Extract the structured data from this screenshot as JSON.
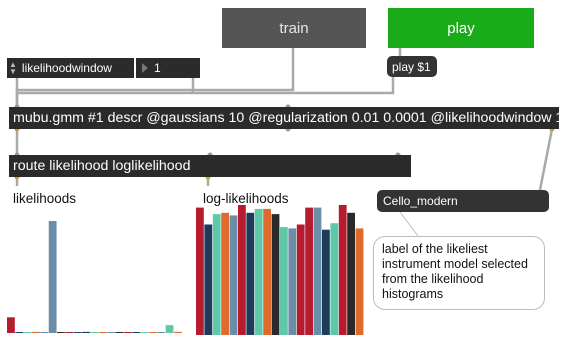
{
  "buttons": {
    "train": "train",
    "play": "play"
  },
  "menu": {
    "value": "likelihoodwindow",
    "number": "1"
  },
  "messages": {
    "play": "play $1"
  },
  "objects": {
    "mubu": "mubu.gmm #1 descr @gaussians 10 @regularization 0.01 0.0001 @likelihoodwindow 1",
    "route": "route likelihood loglikelihood"
  },
  "output_label": "Cello_modern",
  "comments": {
    "likelihoods": "likelihoods",
    "loglikelihoods": "log-likelihoods",
    "bubble": "label of the likeliest instrument model selected from the likelihood histograms"
  },
  "colors": {
    "red": "#b71c2e",
    "navy": "#1f3b5b",
    "teal": "#5ec8a8",
    "orange": "#de6a2b",
    "steel": "#6b8ea8",
    "dark": "#2a2a2a"
  },
  "histograms": {
    "likelihoods": {
      "values": [
        0.14,
        0.005,
        0.005,
        0.01,
        0.0,
        1.0,
        0.0,
        0.0,
        0.0,
        0.01,
        0.0,
        0.0,
        0.0,
        0.0,
        0.0,
        0.0,
        0.0,
        0.0,
        0.0,
        0.07,
        0.01
      ],
      "colors": [
        "red",
        "navy",
        "teal",
        "orange",
        "steel",
        "steel",
        "dark",
        "red",
        "navy",
        "navy",
        "teal",
        "orange",
        "steel",
        "dark",
        "red",
        "navy",
        "teal",
        "orange",
        "steel",
        "teal",
        "orange"
      ]
    },
    "loglikelihoods": {
      "values": [
        0.98,
        0.85,
        0.93,
        0.94,
        0.92,
        1.0,
        0.94,
        0.97,
        0.97,
        0.93,
        0.83,
        0.82,
        0.85,
        0.98,
        0.98,
        0.81,
        0.86,
        1.0,
        0.94,
        0.82
      ],
      "colors": [
        "red",
        "navy",
        "teal",
        "orange",
        "steel",
        "red",
        "navy",
        "teal",
        "orange",
        "dark",
        "teal",
        "steel",
        "red",
        "red",
        "steel",
        "navy",
        "teal",
        "red",
        "dark",
        "orange"
      ]
    }
  }
}
